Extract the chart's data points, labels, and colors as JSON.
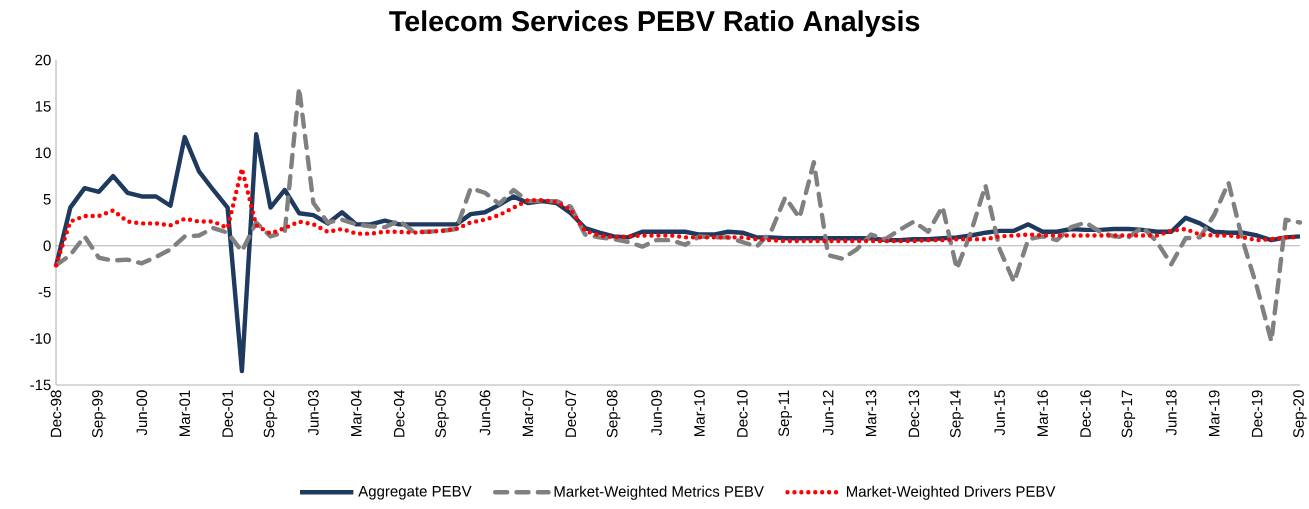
{
  "chart_data": {
    "type": "line",
    "title": "Telecom Services PEBV Ratio Analysis",
    "categories": [
      "Dec-98",
      null,
      null,
      "Sep-99",
      null,
      null,
      "Jun-00",
      null,
      null,
      "Mar-01",
      null,
      null,
      "Dec-01",
      null,
      null,
      "Sep-02",
      null,
      null,
      "Jun-03",
      null,
      null,
      "Mar-04",
      null,
      null,
      "Dec-04",
      null,
      null,
      "Sep-05",
      null,
      null,
      "Jun-06",
      null,
      null,
      "Mar-07",
      null,
      null,
      "Dec-07",
      null,
      null,
      "Sep-08",
      null,
      null,
      "Jun-09",
      null,
      null,
      "Mar-10",
      null,
      null,
      "Dec-10",
      null,
      null,
      "Sep-11",
      null,
      null,
      "Jun-12",
      null,
      null,
      "Mar-13",
      null,
      null,
      "Dec-13",
      null,
      null,
      "Sep-14",
      null,
      null,
      "Jun-15",
      null,
      null,
      "Mar-16",
      null,
      null,
      "Dec-16",
      null,
      null,
      "Sep-17",
      null,
      null,
      "Jun-18",
      null,
      null,
      "Mar-19",
      null,
      null,
      "Dec-19",
      null,
      null,
      "Sep-20"
    ],
    "series": [
      {
        "name": "Aggregate PEBV",
        "color": "#1f3a5f",
        "line_style": "solid",
        "values": [
          -2.2,
          4.1,
          6.2,
          5.8,
          7.5,
          5.7,
          5.3,
          5.3,
          4.3,
          11.7,
          8.0,
          6.0,
          4.1,
          -13.5,
          12.0,
          4.1,
          6.0,
          3.5,
          3.3,
          2.4,
          3.6,
          2.3,
          2.3,
          2.7,
          2.3,
          2.3,
          2.3,
          2.3,
          2.3,
          3.4,
          3.6,
          4.4,
          5.3,
          4.6,
          4.8,
          4.6,
          3.5,
          1.9,
          1.4,
          1.0,
          0.9,
          1.5,
          1.5,
          1.5,
          1.5,
          1.2,
          1.2,
          1.5,
          1.4,
          0.9,
          0.9,
          0.8,
          0.8,
          0.8,
          0.8,
          0.8,
          0.8,
          0.8,
          0.6,
          0.6,
          0.7,
          0.7,
          0.8,
          0.9,
          1.1,
          1.4,
          1.6,
          1.6,
          2.3,
          1.5,
          1.5,
          1.8,
          1.7,
          1.7,
          1.8,
          1.8,
          1.7,
          1.5,
          1.5,
          3.0,
          2.4,
          1.5,
          1.4,
          1.4,
          1.1,
          0.6,
          0.9,
          1.0
        ]
      },
      {
        "name": "Market-Weighted Metrics PEBV",
        "color": "#808080",
        "line_style": "dashed",
        "values": [
          -2.1,
          -1.0,
          1.0,
          -1.3,
          -1.6,
          -1.5,
          -1.9,
          -1.2,
          -0.4,
          1.0,
          1.1,
          1.9,
          1.4,
          -0.6,
          2.5,
          1.0,
          1.5,
          17.0,
          4.6,
          2.5,
          2.8,
          2.3,
          2.1,
          2.0,
          2.7,
          1.5,
          1.5,
          1.6,
          1.8,
          6.2,
          5.7,
          4.5,
          6.0,
          4.8,
          4.8,
          4.8,
          4.2,
          1.2,
          0.9,
          0.7,
          0.4,
          -0.1,
          0.6,
          0.6,
          0.1,
          1.0,
          0.9,
          0.9,
          0.4,
          -0.1,
          1.5,
          5.2,
          3.0,
          9.0,
          -1.0,
          -1.4,
          -0.4,
          1.2,
          0.7,
          1.7,
          2.6,
          1.5,
          4.2,
          -2.5,
          1.5,
          6.5,
          -0.4,
          -3.9,
          0.7,
          1.0,
          0.6,
          2.0,
          2.5,
          1.5,
          1.0,
          0.9,
          2.0,
          0.4,
          -2.0,
          0.8,
          0.9,
          3.3,
          6.8,
          0.5,
          -4.5,
          -10.3,
          2.8,
          2.5
        ]
      },
      {
        "name": "Market-Weighted Drivers PEBV",
        "color": "#ff0000",
        "line_style": "dotted",
        "values": [
          -2.1,
          2.6,
          3.2,
          3.2,
          3.8,
          2.6,
          2.4,
          2.4,
          2.2,
          2.9,
          2.6,
          2.6,
          1.9,
          8.3,
          2.2,
          1.3,
          1.9,
          2.6,
          2.3,
          1.5,
          1.8,
          1.3,
          1.3,
          1.5,
          1.5,
          1.4,
          1.5,
          1.6,
          1.8,
          2.5,
          2.8,
          3.3,
          4.1,
          4.9,
          4.9,
          4.7,
          3.9,
          1.6,
          1.1,
          0.9,
          1.0,
          1.1,
          1.1,
          1.1,
          0.9,
          0.9,
          0.9,
          0.9,
          0.9,
          0.7,
          0.6,
          0.5,
          0.5,
          0.5,
          0.5,
          0.5,
          0.5,
          0.5,
          0.5,
          0.5,
          0.5,
          0.6,
          0.6,
          0.7,
          0.7,
          0.7,
          1.0,
          1.1,
          1.2,
          1.1,
          1.1,
          1.1,
          1.1,
          1.1,
          1.1,
          1.1,
          1.1,
          1.1,
          1.6,
          1.8,
          1.2,
          1.1,
          1.1,
          0.9,
          0.6,
          0.7,
          0.9,
          0.9
        ]
      }
    ],
    "ylim": [
      -15,
      20
    ],
    "yticks": [
      -15,
      -10,
      -5,
      0,
      5,
      10,
      15,
      20
    ],
    "legend": "bottom"
  }
}
